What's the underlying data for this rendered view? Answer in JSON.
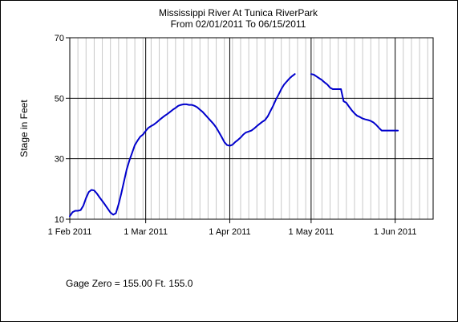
{
  "chart_data": {
    "type": "line",
    "title": "Mississippi River At Tunica RiverPark",
    "subtitle": "From 02/01/2011 To 06/15/2011",
    "ylabel": "Stage in Feet",
    "xlabel": "",
    "x_range": [
      "2011-02-01",
      "2011-06-15"
    ],
    "ylim": [
      10,
      70
    ],
    "yticks": [
      10,
      30,
      50,
      70
    ],
    "xticks": [
      {
        "date": "2011-02-01",
        "label": "1 Feb 2011"
      },
      {
        "date": "2011-03-01",
        "label": "1 Mar 2011"
      },
      {
        "date": "2011-04-01",
        "label": "1 Apr 2011"
      },
      {
        "date": "2011-05-01",
        "label": "1 May 2011"
      },
      {
        "date": "2011-06-01",
        "label": "1 Jun 2011"
      }
    ],
    "grid": {
      "major_y": true,
      "major_x": true,
      "minor_x_every_days": 3
    },
    "line_color": "#0000cc",
    "series": [
      {
        "segments": [
          [
            [
              "2011-02-01",
              11.0
            ],
            [
              "2011-02-02",
              12.3
            ],
            [
              "2011-02-03",
              12.8
            ],
            [
              "2011-02-04",
              12.8
            ],
            [
              "2011-02-05",
              13.0
            ],
            [
              "2011-02-06",
              14.5
            ],
            [
              "2011-02-07",
              17.0
            ],
            [
              "2011-02-08",
              19.0
            ],
            [
              "2011-02-09",
              19.7
            ],
            [
              "2011-02-10",
              19.5
            ],
            [
              "2011-02-11",
              18.5
            ],
            [
              "2011-02-12",
              17.2
            ],
            [
              "2011-02-13",
              16.0
            ],
            [
              "2011-02-14",
              14.8
            ],
            [
              "2011-02-15",
              13.5
            ],
            [
              "2011-02-16",
              12.2
            ],
            [
              "2011-02-17",
              11.5
            ],
            [
              "2011-02-18",
              12.0
            ],
            [
              "2011-02-19",
              15.0
            ],
            [
              "2011-02-20",
              18.5
            ],
            [
              "2011-02-21",
              22.5
            ],
            [
              "2011-02-22",
              26.5
            ],
            [
              "2011-02-23",
              29.5
            ],
            [
              "2011-02-24",
              32.0
            ],
            [
              "2011-02-25",
              34.5
            ],
            [
              "2011-02-26",
              36.0
            ],
            [
              "2011-02-27",
              37.3
            ],
            [
              "2011-02-28",
              38.0
            ],
            [
              "2011-03-01",
              39.2
            ],
            [
              "2011-03-02",
              40.2
            ],
            [
              "2011-03-03",
              40.8
            ],
            [
              "2011-03-04",
              41.3
            ],
            [
              "2011-03-05",
              42.0
            ],
            [
              "2011-03-06",
              42.8
            ],
            [
              "2011-03-07",
              43.5
            ],
            [
              "2011-03-08",
              44.2
            ],
            [
              "2011-03-09",
              44.8
            ],
            [
              "2011-03-10",
              45.5
            ],
            [
              "2011-03-11",
              46.2
            ],
            [
              "2011-03-12",
              46.8
            ],
            [
              "2011-03-13",
              47.5
            ],
            [
              "2011-03-14",
              47.8
            ],
            [
              "2011-03-15",
              48.0
            ],
            [
              "2011-03-16",
              48.0
            ],
            [
              "2011-03-17",
              47.8
            ],
            [
              "2011-03-18",
              47.8
            ],
            [
              "2011-03-19",
              47.5
            ],
            [
              "2011-03-20",
              47.0
            ],
            [
              "2011-03-21",
              46.2
            ],
            [
              "2011-03-22",
              45.5
            ],
            [
              "2011-03-23",
              44.5
            ],
            [
              "2011-03-24",
              43.5
            ],
            [
              "2011-03-25",
              42.5
            ],
            [
              "2011-03-26",
              41.5
            ],
            [
              "2011-03-27",
              40.3
            ],
            [
              "2011-03-28",
              38.8
            ],
            [
              "2011-03-29",
              37.2
            ],
            [
              "2011-03-30",
              35.5
            ],
            [
              "2011-03-31",
              34.5
            ],
            [
              "2011-04-01",
              34.3
            ],
            [
              "2011-04-02",
              34.6
            ],
            [
              "2011-04-03",
              35.5
            ],
            [
              "2011-04-04",
              36.2
            ],
            [
              "2011-04-05",
              37.0
            ],
            [
              "2011-04-06",
              38.0
            ],
            [
              "2011-04-07",
              38.7
            ],
            [
              "2011-04-08",
              39.0
            ],
            [
              "2011-04-09",
              39.3
            ],
            [
              "2011-04-10",
              40.0
            ],
            [
              "2011-04-11",
              40.8
            ],
            [
              "2011-04-12",
              41.5
            ],
            [
              "2011-04-13",
              42.2
            ],
            [
              "2011-04-14",
              42.8
            ],
            [
              "2011-04-15",
              44.0
            ],
            [
              "2011-04-16",
              45.8
            ],
            [
              "2011-04-17",
              47.5
            ],
            [
              "2011-04-18",
              49.5
            ],
            [
              "2011-04-19",
              51.2
            ],
            [
              "2011-04-20",
              53.0
            ],
            [
              "2011-04-21",
              54.5
            ],
            [
              "2011-04-22",
              55.5
            ],
            [
              "2011-04-23",
              56.5
            ],
            [
              "2011-04-24",
              57.3
            ],
            [
              "2011-04-25",
              58.0
            ]
          ],
          [
            [
              "2011-05-01",
              58.0
            ],
            [
              "2011-05-02",
              57.8
            ],
            [
              "2011-05-03",
              57.2
            ],
            [
              "2011-05-04",
              56.6
            ],
            [
              "2011-05-05",
              56.0
            ],
            [
              "2011-05-06",
              55.2
            ],
            [
              "2011-05-07",
              54.5
            ],
            [
              "2011-05-08",
              53.5
            ],
            [
              "2011-05-09",
              53.0
            ],
            [
              "2011-05-10",
              53.0
            ],
            [
              "2011-05-11",
              53.0
            ],
            [
              "2011-05-12",
              53.0
            ],
            [
              "2011-05-13",
              49.0
            ],
            [
              "2011-05-14",
              48.5
            ],
            [
              "2011-05-15",
              47.2
            ],
            [
              "2011-05-16",
              46.0
            ],
            [
              "2011-05-17",
              45.0
            ],
            [
              "2011-05-18",
              44.2
            ],
            [
              "2011-05-19",
              43.8
            ],
            [
              "2011-05-20",
              43.3
            ],
            [
              "2011-05-21",
              43.0
            ],
            [
              "2011-05-22",
              42.8
            ],
            [
              "2011-05-23",
              42.5
            ],
            [
              "2011-05-24",
              42.0
            ],
            [
              "2011-05-25",
              41.2
            ],
            [
              "2011-05-26",
              40.2
            ],
            [
              "2011-05-27",
              39.3
            ],
            [
              "2011-05-28",
              39.3
            ],
            [
              "2011-05-29",
              39.3
            ],
            [
              "2011-05-30",
              39.3
            ],
            [
              "2011-05-31",
              39.3
            ],
            [
              "2011-06-01",
              39.3
            ],
            [
              "2011-06-02",
              39.3
            ]
          ]
        ]
      }
    ]
  },
  "footer": {
    "gage_zero": "Gage Zero = 155.00 Ft. 155.0"
  }
}
